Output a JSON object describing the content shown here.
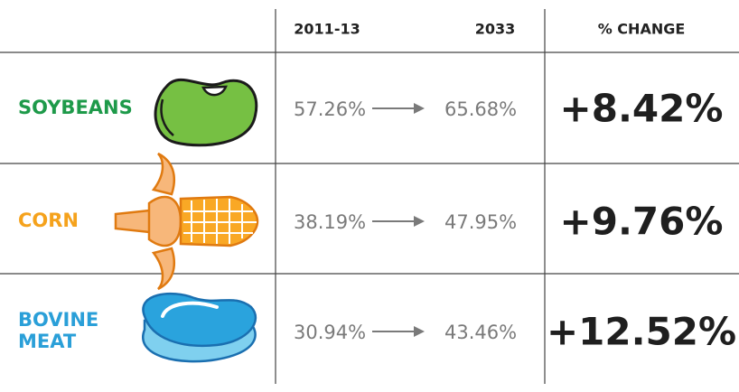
{
  "header": {
    "columns": [
      "2011-13",
      "2033",
      "% CHANGE"
    ]
  },
  "rows": [
    {
      "label": [
        "SOYBEANS"
      ],
      "from": "57.26%",
      "to": "65.68%",
      "change": "+8.42%"
    },
    {
      "label": [
        "CORN"
      ],
      "from": "38.19%",
      "to": "47.95%",
      "change": "+9.76%"
    },
    {
      "label": [
        "BOVINE",
        "MEAT"
      ],
      "from": "30.94%",
      "to": "43.46%",
      "change": "+12.52%"
    }
  ]
}
